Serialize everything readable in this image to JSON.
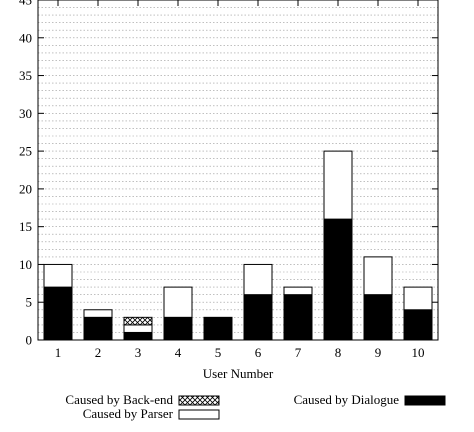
{
  "chart_data": {
    "type": "bar",
    "stacked": true,
    "categories": [
      "1",
      "2",
      "3",
      "4",
      "5",
      "6",
      "7",
      "8",
      "9",
      "10"
    ],
    "series": [
      {
        "name": "Caused by Dialogue",
        "values": [
          7,
          3,
          1,
          3,
          3,
          6,
          6,
          16,
          6,
          4
        ],
        "color": "#000000",
        "pattern": "solid"
      },
      {
        "name": "Caused by Parser",
        "values": [
          3,
          1,
          1,
          4,
          0,
          4,
          1,
          9,
          5,
          3
        ],
        "color": "#ffffff",
        "pattern": "empty"
      },
      {
        "name": "Caused by Back-end",
        "values": [
          0,
          0,
          1,
          0,
          0,
          0,
          0,
          0,
          0,
          0
        ],
        "color": "#ffffff",
        "pattern": "crosshatch"
      }
    ],
    "xlabel": "User Number",
    "ylabel": "",
    "ylim": [
      0,
      45
    ],
    "y_ticks": [
      "0",
      "5",
      "10",
      "15",
      "20",
      "25",
      "30",
      "35",
      "40",
      "45"
    ],
    "grid": "horizontal dotted",
    "legend": "bottom"
  }
}
